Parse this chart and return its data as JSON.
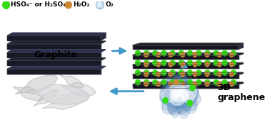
{
  "background_color": "#ffffff",
  "legend_green_label": "HSO₄⁻ or H₂SO₄",
  "legend_orange_label": "H₂O₂",
  "legend_blue_label": "O₂",
  "green": "#33dd11",
  "orange": "#cc8833",
  "blue_light": "#aaccee",
  "graphite_label": "Graphite",
  "graphene_label_line1": "3D",
  "graphene_label_line2": "graphene",
  "arrow_color": "#4499cc",
  "dark_graphite": "#1c1e28",
  "mid_graphite": "#2a2e40",
  "label_fontsize": 6.5,
  "graphene_label_fontsize": 9,
  "graphite_label_fontsize": 9
}
